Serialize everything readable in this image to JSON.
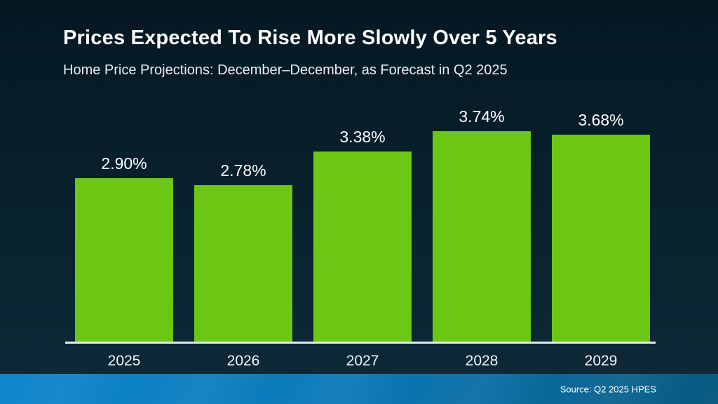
{
  "header": {
    "title": "Prices Expected To Rise More Slowly Over 5 Years",
    "subtitle": "Home Price Projections: December–December, as Forecast in Q2 2025"
  },
  "chart_data": {
    "type": "bar",
    "title": "Prices Expected To Rise More Slowly Over 5 Years",
    "subtitle": "Home Price Projections: December–December, as Forecast in Q2 2025",
    "categories": [
      "2025",
      "2026",
      "2027",
      "2028",
      "2029"
    ],
    "values": [
      2.9,
      2.78,
      3.38,
      3.74,
      3.68
    ],
    "value_labels": [
      "2.90%",
      "2.78%",
      "3.38%",
      "3.74%",
      "3.68%"
    ],
    "xlabel": "",
    "ylabel": "",
    "ylim": [
      0,
      4.2
    ],
    "grid": false,
    "legend_position": "none",
    "bar_color": "#6CC614",
    "value_label_color": "#FFFFFF",
    "axis_line_color": "#E4E9EC"
  },
  "footer": {
    "source": "Source: Q2 2025 HPES"
  },
  "colors": {
    "background_top": "#041822",
    "background_bottom": "#0E2B3A",
    "bar_green": "#6CC614",
    "footer_blue_left": "#0C85CC",
    "footer_blue_right": "#07597F",
    "text_white": "#FFFFFF"
  }
}
